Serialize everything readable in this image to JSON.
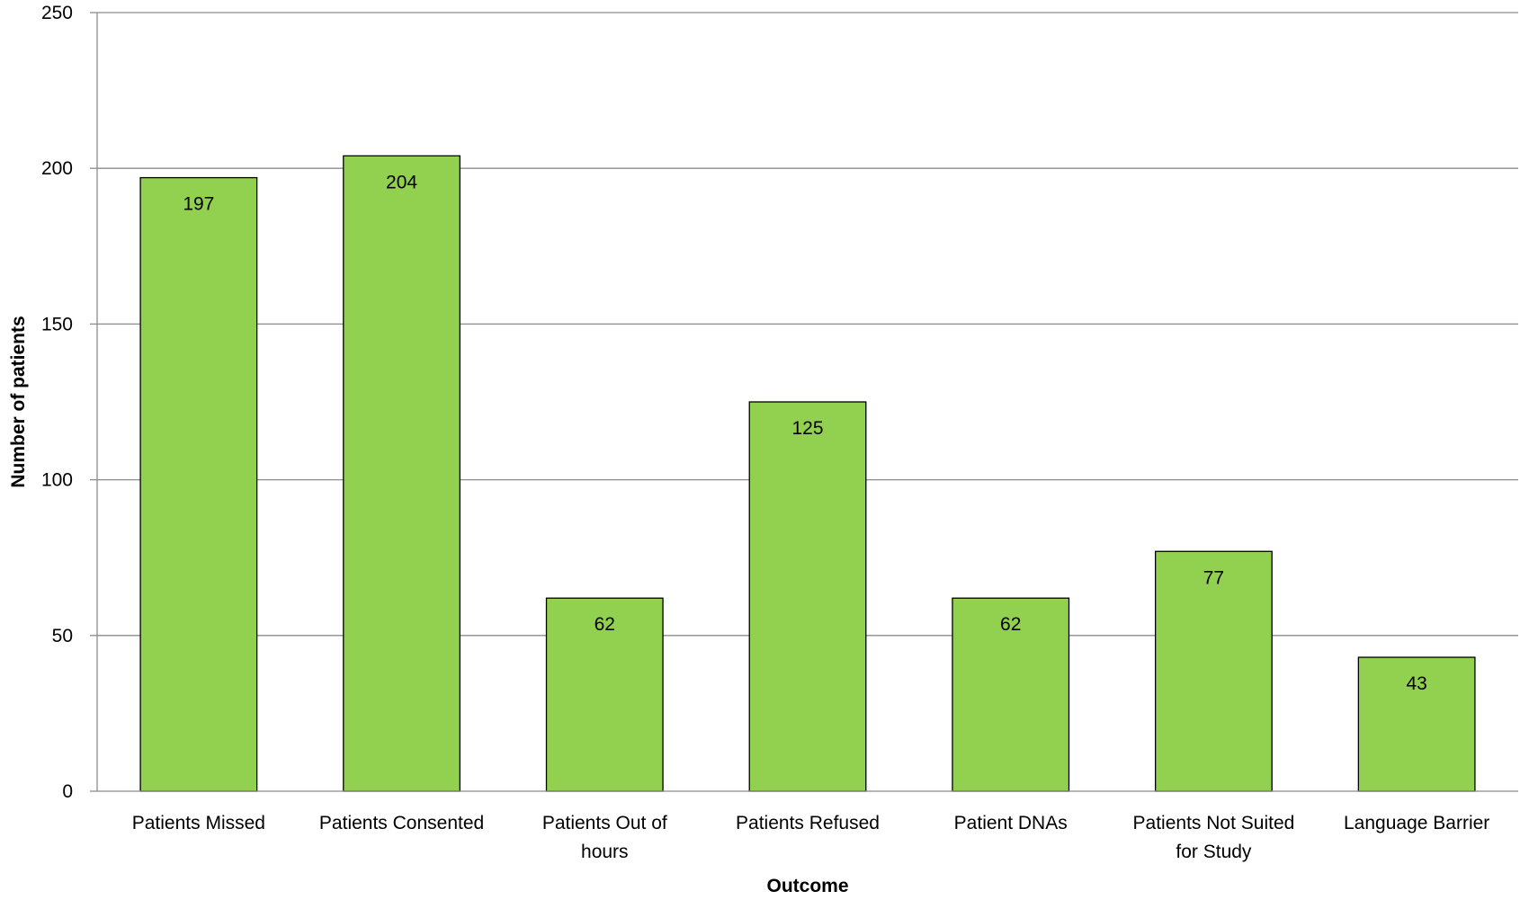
{
  "chart_data": {
    "type": "bar",
    "title": "",
    "xlabel": "Outcome",
    "ylabel": "Number of patients",
    "categories": [
      [
        "Patients Missed"
      ],
      [
        "Patients Consented"
      ],
      [
        "Patients Out of",
        "hours"
      ],
      [
        "Patients Refused"
      ],
      [
        "Patient DNAs"
      ],
      [
        "Patients Not Suited",
        "for Study"
      ],
      [
        "Language Barrier"
      ]
    ],
    "values": [
      197,
      204,
      62,
      125,
      62,
      77,
      43
    ],
    "data_labels": [
      "197",
      "204",
      "62",
      "125",
      "62",
      "77",
      "43"
    ],
    "ylim": [
      0,
      250
    ],
    "yticks": [
      0,
      50,
      100,
      150,
      200,
      250
    ],
    "ytick_labels": [
      "0",
      "50",
      "100",
      "150",
      "200",
      "250"
    ],
    "grid": "horizontal",
    "legend": "none",
    "colors": {
      "bar_fill": "#92d050",
      "bar_stroke": "#000000",
      "gridline": "#8c8c8c"
    }
  }
}
